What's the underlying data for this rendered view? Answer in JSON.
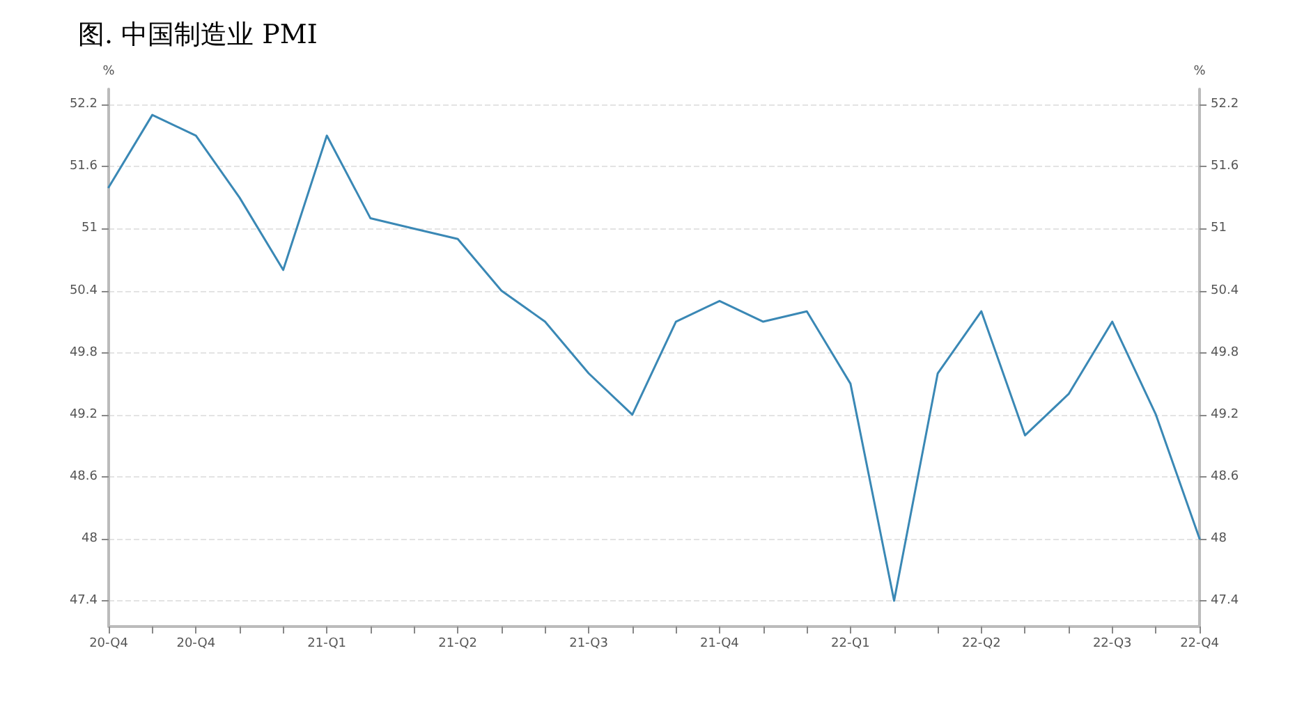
{
  "chart_data": {
    "type": "line",
    "title": "图. 中国制造业 PMI",
    "ylabel": "%",
    "y2label": "%",
    "categories": [
      "20-Q4",
      null,
      "20-Q4",
      null,
      null,
      "21-Q1",
      null,
      null,
      "21-Q2",
      null,
      null,
      "21-Q3",
      null,
      null,
      "21-Q4",
      null,
      null,
      "22-Q1",
      null,
      null,
      "22-Q2",
      null,
      null,
      "22-Q3",
      null,
      "22-Q4"
    ],
    "series": [
      {
        "color": "#3a88b5",
        "values": [
          51.4,
          52.1,
          51.9,
          51.3,
          50.6,
          51.9,
          51.1,
          51.0,
          50.9,
          50.4,
          50.1,
          49.6,
          49.2,
          50.1,
          50.3,
          50.1,
          50.2,
          49.5,
          47.4,
          49.6,
          50.2,
          49.0,
          49.4,
          50.1,
          49.2,
          48.0
        ]
      }
    ],
    "ylim": [
      47.15,
      52.35
    ],
    "yticks": [
      47.4,
      48,
      48.6,
      49.2,
      49.8,
      50.4,
      51,
      51.6,
      52.2
    ],
    "y2lim": [
      47.15,
      52.35
    ],
    "y2ticks": [
      47.4,
      48,
      48.6,
      49.2,
      49.8,
      50.4,
      51,
      51.6,
      52.2
    ],
    "grid": "y",
    "marker": "none",
    "line_style": "solid"
  }
}
